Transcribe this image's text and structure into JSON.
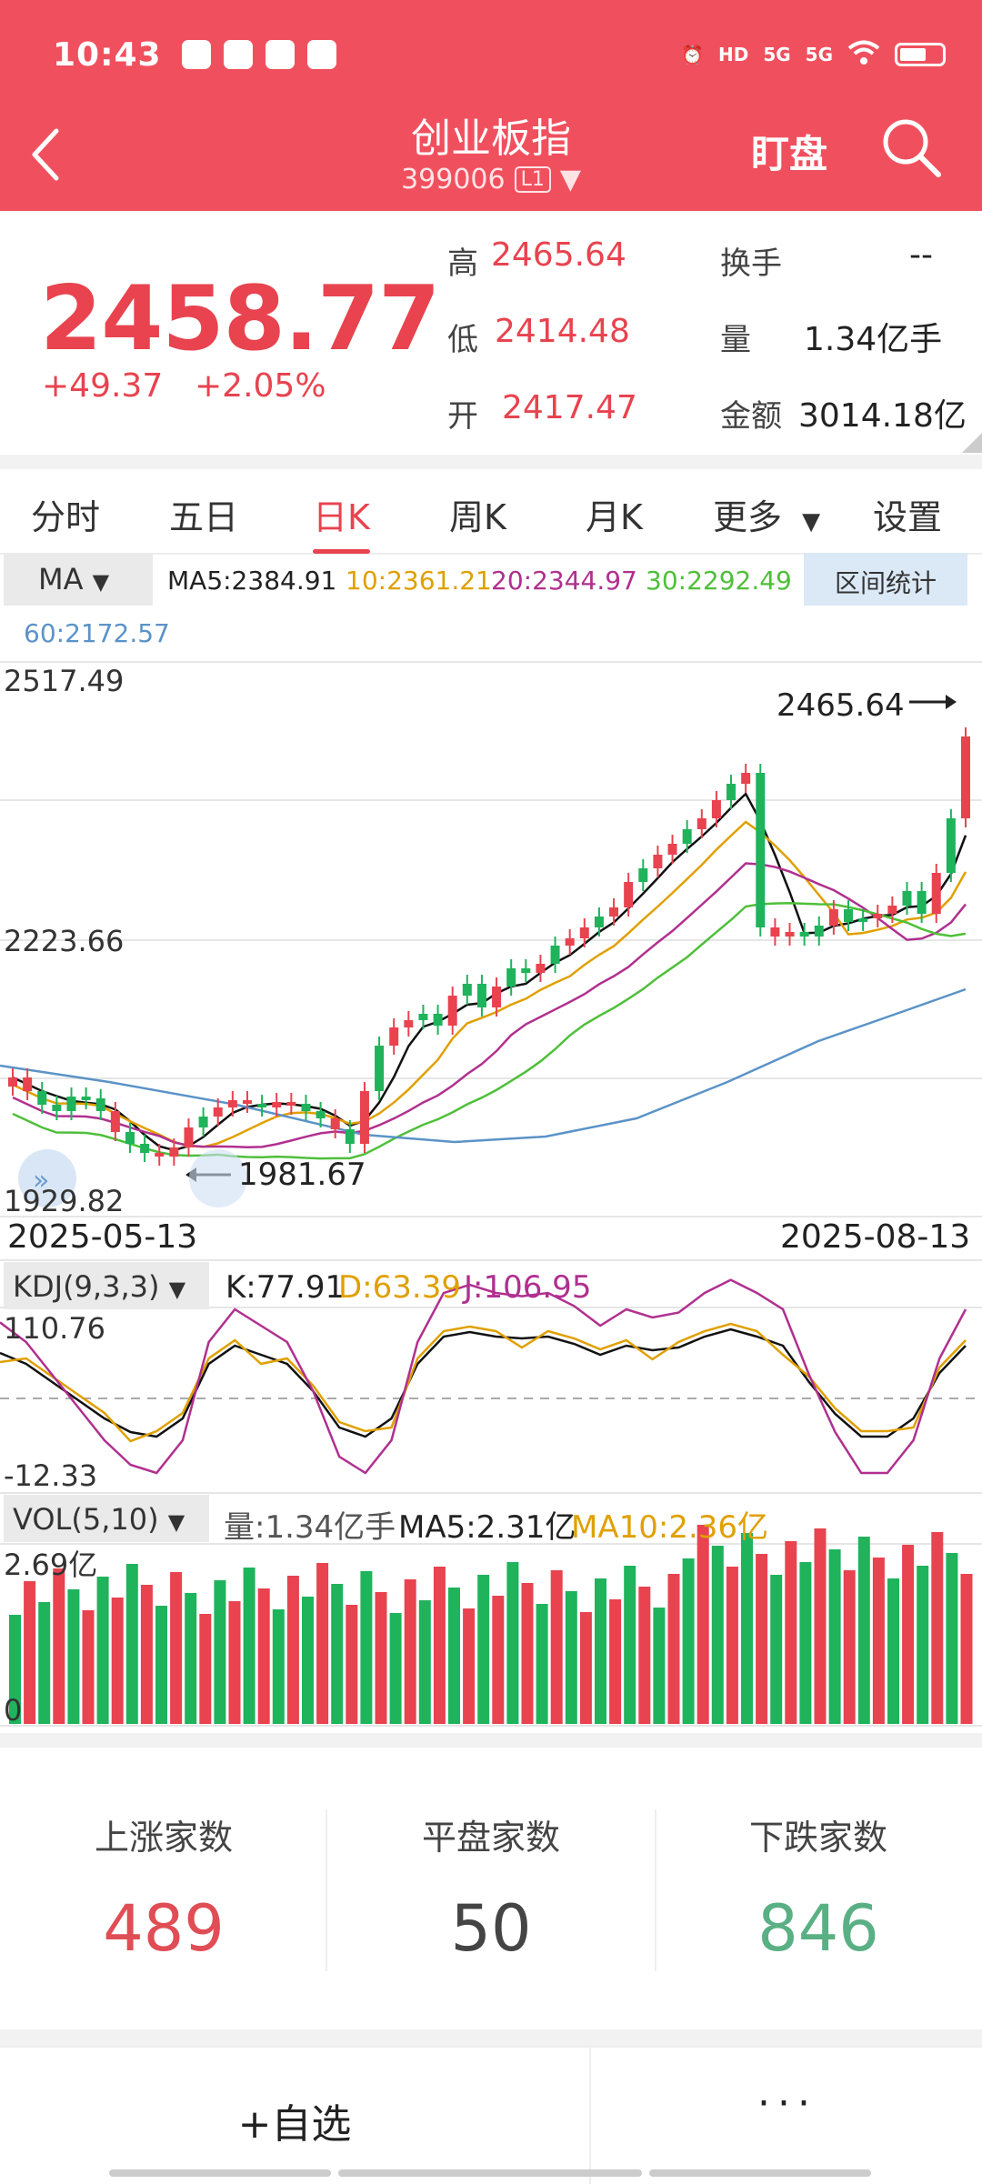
{
  "status": {
    "time": "10:43",
    "signal_label": "5G"
  },
  "header": {
    "title": "创业板指",
    "code": "399006",
    "level": "L1",
    "watch_label": "盯盘"
  },
  "quote": {
    "price": "2458.77",
    "change": "+49.37",
    "change_pct": "+2.05%",
    "high_label": "高",
    "high": "2465.64",
    "low_label": "低",
    "low": "2414.48",
    "open_label": "开",
    "open": "2417.47",
    "turnover_label": "换手",
    "turnover": "--",
    "volume_label": "量",
    "volume": "1.34亿手",
    "amount_label": "金额",
    "amount": "3014.18亿"
  },
  "tabs": [
    {
      "label": "分时"
    },
    {
      "label": "五日"
    },
    {
      "label": "日K",
      "active": true
    },
    {
      "label": "周K"
    },
    {
      "label": "月K"
    },
    {
      "label": "更多"
    },
    {
      "label": "设置"
    }
  ],
  "ma": {
    "selector": "MA",
    "ma5": "MA5:2384.91",
    "ma10": "10:2361.21",
    "ma20": "20:2344.97",
    "ma30": "30:2292.49",
    "ma60": "60:2172.57",
    "range_button": "区间统计"
  },
  "kchart": {
    "y_top": "2517.49",
    "y_mid": "2223.66",
    "y_bottom": "1929.82",
    "high_marker": "2465.64",
    "low_marker": "1981.67",
    "date_start": "2025-05-13",
    "date_end": "2025-08-13"
  },
  "kdj": {
    "selector": "KDJ(9,3,3)",
    "k": "K:77.91",
    "d": "D:63.39",
    "j": "J:106.95",
    "y_top": "110.76",
    "y_bottom": "-12.33"
  },
  "vol": {
    "selector": "VOL(5,10)",
    "volume": "量:1.34亿手",
    "ma5": "MA5:2.31亿",
    "ma10": "MA10:2.36亿",
    "y_top": "2.69亿",
    "y_bottom": "0"
  },
  "breadth": {
    "up_label": "上涨家数",
    "up": "489",
    "flat_label": "平盘家数",
    "flat": "50",
    "down_label": "下跌家数",
    "down": "846"
  },
  "bottom": {
    "add_watch": "+自选",
    "more": "···"
  },
  "colors": {
    "header": "#f0505e",
    "up": "#e8434f",
    "down": "#1fb35c",
    "ma5": "#111111",
    "ma10": "#e0a000",
    "ma20": "#b0308f",
    "ma30": "#4fbf3a",
    "ma60": "#5b93c7"
  }
}
